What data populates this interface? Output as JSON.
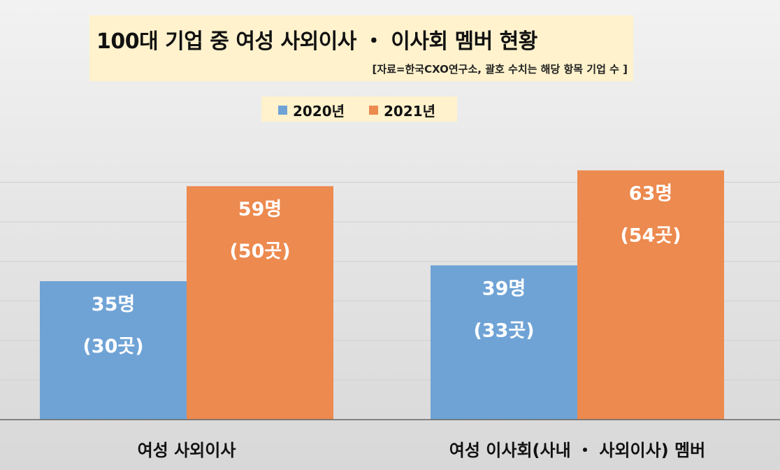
{
  "title": "100대 기업 중 여성 사외이사 ・ 이사회 멤버 현황",
  "subtitle": "[자료=한국CXO연구소, 괄호 수치는 해당 항목 기업 수 ]",
  "colors": {
    "series_2020": "#6fa3d6",
    "series_2021": "#ec8a4f",
    "title_bg": "#fff2cc",
    "label_text": "#ffffff"
  },
  "chart_data": {
    "type": "bar",
    "categories": [
      "여성 사외이사",
      "여성 이사회(사내 ・ 사외이사) 멤버"
    ],
    "series": [
      {
        "name": "2020년",
        "values": [
          35,
          39
        ],
        "labels": [
          "35명",
          "39명"
        ],
        "sublabels": [
          "(30곳)",
          "(33곳)"
        ],
        "companies": [
          30,
          33
        ]
      },
      {
        "name": "2021년",
        "values": [
          59,
          63
        ],
        "labels": [
          "59명",
          "63명"
        ],
        "sublabels": [
          "(50곳)",
          "(54곳)"
        ],
        "companies": [
          50,
          54
        ]
      }
    ],
    "ylim": [
      0,
      70
    ],
    "grid": true,
    "legend_position": "top"
  }
}
